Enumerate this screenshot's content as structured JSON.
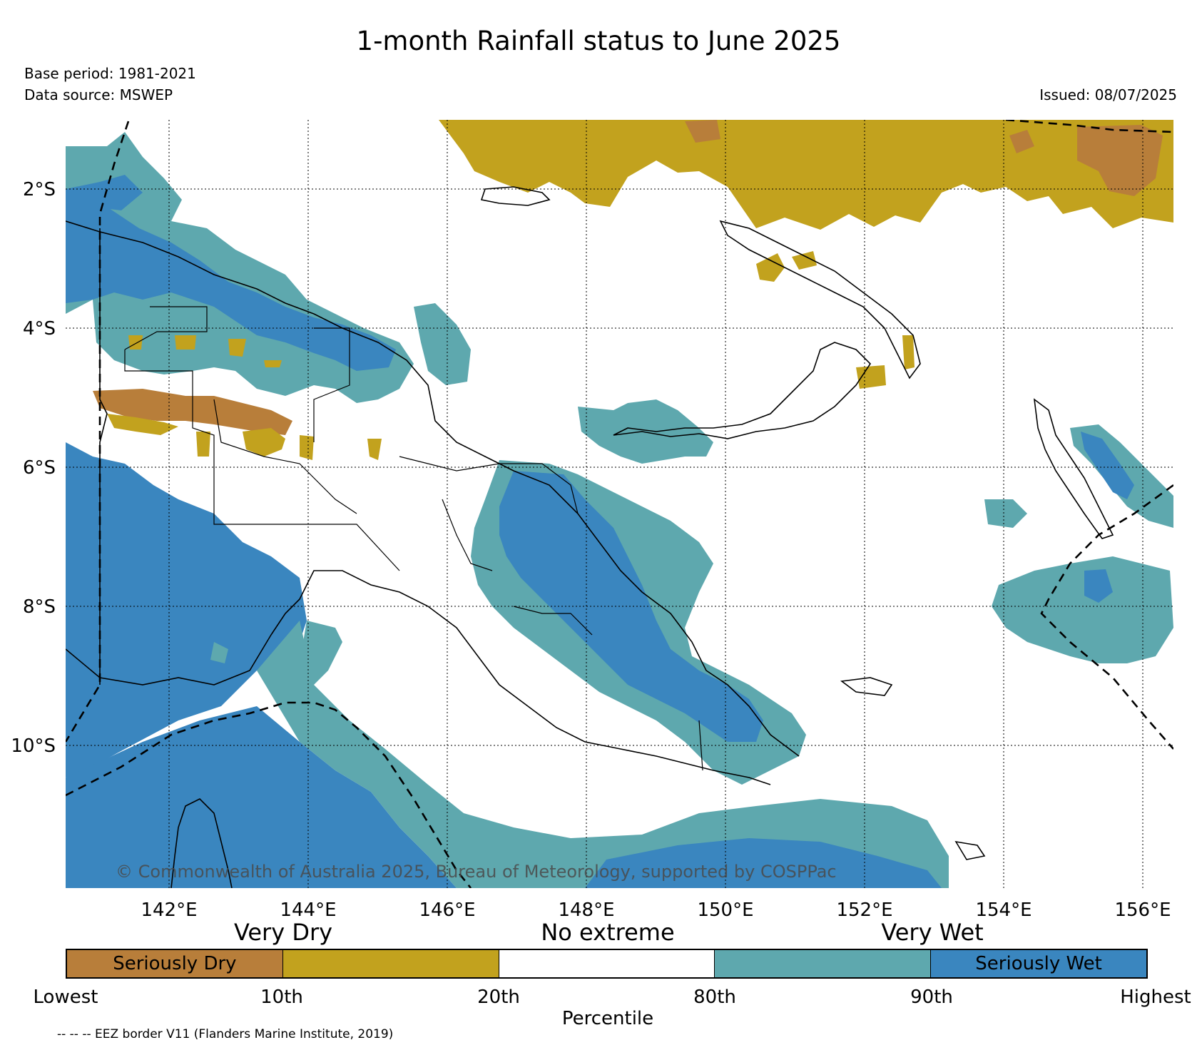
{
  "header": {
    "title": "1-month Rainfall status to June 2025",
    "base_period": "Base period: 1981-2021",
    "data_source": "Data source: MSWEP",
    "issued": "Issued: 08/07/2025"
  },
  "map": {
    "lat_labels": [
      "2°S",
      "4°S",
      "6°S",
      "8°S",
      "10°S"
    ],
    "lon_labels": [
      "142°E",
      "144°E",
      "146°E",
      "148°E",
      "150°E",
      "152°E",
      "154°E",
      "156°E"
    ],
    "copyright": "© Commonwealth of Australia 2025, Bureau of Meteorology, supported by COSPPac",
    "colors": {
      "seriously_dry": "#b87e3a",
      "very_dry": "#c2a21e",
      "no_extreme": "#ffffff",
      "very_wet": "#5ea8ae",
      "seriously_wet": "#3a86bf"
    }
  },
  "legend": {
    "categories": [
      "Very Dry",
      "No extreme",
      "Very Wet"
    ],
    "segments": [
      {
        "label": "Seriously Dry",
        "color": "#b87e3a"
      },
      {
        "label": "",
        "color": "#c2a21e"
      },
      {
        "label": "",
        "color": "#ffffff"
      },
      {
        "label": "",
        "color": "#5ea8ae"
      },
      {
        "label": "Seriously Wet",
        "color": "#3a86bf"
      }
    ],
    "ticks": [
      "Lowest",
      "10th",
      "20th",
      "80th",
      "90th",
      "Highest"
    ],
    "axis_label": "Percentile",
    "eez_note": "-- -- -- EEZ border V11 (Flanders Marine Institute, 2019)"
  }
}
